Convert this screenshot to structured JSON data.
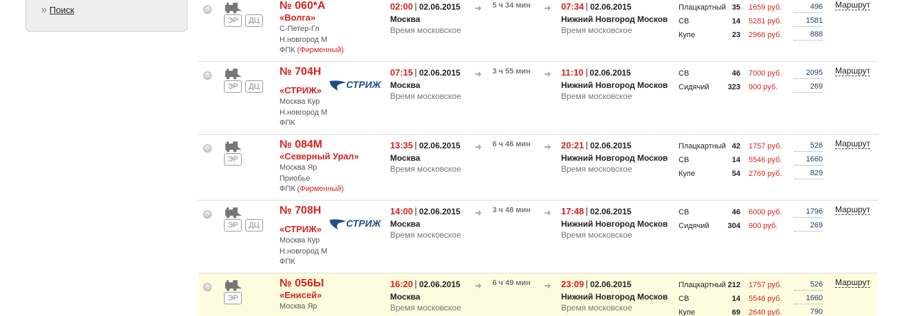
{
  "sidebar": {
    "search": "Поиск"
  },
  "trains": [
    {
      "number": "№ 060*А",
      "name": "«Волга»",
      "badges": [
        "ЭР",
        "ДЦ"
      ],
      "stations": [
        "С-Петер-Гл",
        "Н.новгород М"
      ],
      "carrier": "ФПК",
      "brand": "(Фирменный)",
      "dep_time": "02:00",
      "dep_date": "02.06.2015",
      "dep_station": "Москва",
      "dep_tz": "Время московское",
      "duration": "5 ч 34 мин",
      "arr_time": "07:34",
      "arr_date": "02.06.2015",
      "arr_station": "Нижний Новгород Москов",
      "arr_tz": "Время московское",
      "seats": [
        {
          "type": "Плацкартный",
          "count": 35,
          "price": "1659 руб.",
          "extra": 496
        },
        {
          "type": "СВ",
          "count": 14,
          "price": "5281 руб.",
          "extra": 1581
        },
        {
          "type": "Купе",
          "count": 23,
          "price": "2966 руб.",
          "extra": 888
        }
      ],
      "route": "Маршрут"
    },
    {
      "number": "№ 704Н",
      "name": "«СТРИЖ»",
      "logo": "СТРИЖ",
      "badges": [
        "ЭР",
        "ДЦ"
      ],
      "stations": [
        "Москва Кур",
        "Н.новгород М"
      ],
      "carrier": "ФПК",
      "dep_time": "07:15",
      "dep_date": "02.06.2015",
      "dep_station": "Москва",
      "dep_tz": "Время московское",
      "duration": "3 ч 55 мин",
      "arr_time": "11:10",
      "arr_date": "02.06.2015",
      "arr_station": "Нижний Новгород Москов",
      "arr_tz": "Время московское",
      "seats": [
        {
          "type": "СВ",
          "count": 46,
          "price": "7000 руб.",
          "extra": 2095
        },
        {
          "type": "Сидячий",
          "count": 323,
          "price": "900 руб.",
          "extra": 269
        }
      ],
      "route": "Маршрут"
    },
    {
      "number": "№ 084М",
      "name": "«Северный Урал»",
      "badges": [
        "ЭР"
      ],
      "stations": [
        "Москва Яр",
        "Приобье"
      ],
      "carrier": "ФПК",
      "brand": "(Фирменный)",
      "dep_time": "13:35",
      "dep_date": "02.06.2015",
      "dep_station": "Москва",
      "dep_tz": "Время московское",
      "duration": "6 ч 46 мин",
      "arr_time": "20:21",
      "arr_date": "02.06.2015",
      "arr_station": "Нижний Новгород Москов",
      "arr_tz": "Время московское",
      "seats": [
        {
          "type": "Плацкартный",
          "count": 42,
          "price": "1757 руб.",
          "extra": 526
        },
        {
          "type": "СВ",
          "count": 14,
          "price": "5546 руб.",
          "extra": 1660
        },
        {
          "type": "Купе",
          "count": 54,
          "price": "2769 руб.",
          "extra": 829
        }
      ],
      "route": "Маршрут"
    },
    {
      "number": "№ 708Н",
      "name": "«СТРИЖ»",
      "logo": "СТРИЖ",
      "badges": [
        "ЭР",
        "ДЦ"
      ],
      "stations": [
        "Москва Кур",
        "Н.новгород М"
      ],
      "carrier": "ФПК",
      "dep_time": "14:00",
      "dep_date": "02.06.2015",
      "dep_station": "Москва",
      "dep_tz": "Время московское",
      "duration": "3 ч 48 мин",
      "arr_time": "17:48",
      "arr_date": "02.06.2015",
      "arr_station": "Нижний Новгород Москов",
      "arr_tz": "Время московское",
      "seats": [
        {
          "type": "СВ",
          "count": 46,
          "price": "6000 руб.",
          "extra": 1796
        },
        {
          "type": "Сидячий",
          "count": 304,
          "price": "900 руб.",
          "extra": 269
        }
      ],
      "route": "Маршрут"
    },
    {
      "number": "№ 056Ы",
      "name": "«Енисей»",
      "badges": [
        "ЭР"
      ],
      "stations": [
        "Москва Яр"
      ],
      "dep_time": "16:20",
      "dep_date": "02.06.2015",
      "dep_station": "Москва",
      "dep_tz": "Время московское",
      "duration": "6 ч 49 мин",
      "arr_time": "23:09",
      "arr_date": "02.06.2015",
      "arr_station": "Нижний Новгород Москов",
      "arr_tz": "Время московское",
      "seats": [
        {
          "type": "Плацкартный",
          "count": 212,
          "price": "1757 руб.",
          "extra": 526
        },
        {
          "type": "СВ",
          "count": 14,
          "price": "5546 руб.",
          "extra": 1660
        },
        {
          "type": "Купе",
          "count": 69,
          "price": "2640 руб.",
          "extra": 790
        }
      ],
      "route": "Маршрут"
    }
  ]
}
